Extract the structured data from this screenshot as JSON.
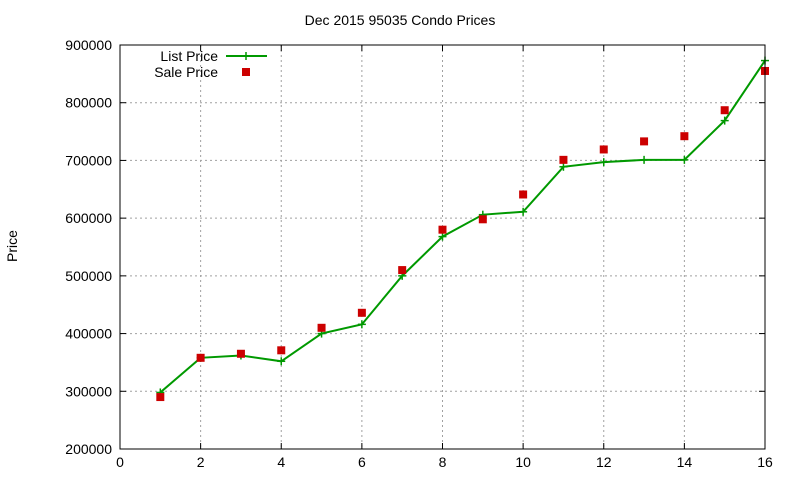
{
  "chart_data": {
    "type": "line",
    "title": "Dec 2015 95035 Condo Prices",
    "xlabel": "",
    "ylabel": "Price",
    "xlim": [
      0,
      16
    ],
    "ylim": [
      200000,
      900000
    ],
    "xticks": [
      0,
      2,
      4,
      6,
      8,
      10,
      12,
      14,
      16
    ],
    "yticks": [
      200000,
      300000,
      400000,
      500000,
      600000,
      700000,
      800000,
      900000
    ],
    "grid": true,
    "legend_position": "top-left",
    "series": [
      {
        "name": "List Price",
        "style": "line-plus",
        "color": "#009900",
        "x": [
          1,
          2,
          3,
          4,
          5,
          6,
          7,
          8,
          9,
          10,
          11,
          12,
          13,
          14,
          15,
          16
        ],
        "values": [
          298000,
          358000,
          362000,
          352000,
          400000,
          416000,
          500000,
          568000,
          606000,
          611000,
          689000,
          697000,
          701000,
          701000,
          769000,
          873000
        ]
      },
      {
        "name": "Sale Price",
        "style": "square-markers",
        "color": "#cc0000",
        "x": [
          1,
          2,
          3,
          4,
          5,
          6,
          7,
          8,
          9,
          10,
          11,
          12,
          13,
          14,
          15,
          16
        ],
        "values": [
          290000,
          358000,
          365000,
          371000,
          410000,
          436000,
          510000,
          580000,
          598000,
          641000,
          701000,
          719000,
          733000,
          742000,
          787000,
          855000
        ]
      }
    ]
  }
}
